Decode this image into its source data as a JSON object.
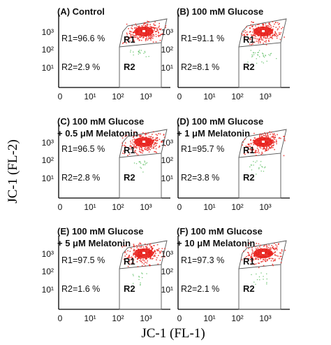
{
  "figure": {
    "y_axis_label": "JC-1 (FL-2)",
    "x_axis_label": "JC-1 (FL-1)"
  },
  "colors": {
    "r1_population": "#e8201c",
    "r2_population": "#3cb043",
    "gate_line": "#555555",
    "axis": "#000000"
  },
  "chart_data": [
    {
      "type": "scatter",
      "title_lines": [
        "(A) Control"
      ],
      "x_scale": "log",
      "y_scale": "log",
      "x_ticks": [
        "0",
        "10¹",
        "10²",
        "10³"
      ],
      "y_ticks": [
        "10¹",
        "10²",
        "10³"
      ],
      "gates": [
        {
          "name": "R1",
          "stat": "R1=96.6 %",
          "percent": 96.6
        },
        {
          "name": "R2",
          "stat": "R2=2.9 %",
          "percent": 2.9
        }
      ]
    },
    {
      "type": "scatter",
      "title_lines": [
        "(B) 100 mM Glucose"
      ],
      "x_scale": "log",
      "y_scale": "log",
      "x_ticks": [
        "0",
        "10¹",
        "10²",
        "10³"
      ],
      "y_ticks": [
        "10¹",
        "10²",
        "10³"
      ],
      "gates": [
        {
          "name": "R1",
          "stat": "R1=91.1 %",
          "percent": 91.1
        },
        {
          "name": "R2",
          "stat": "R2=8.1 %",
          "percent": 8.1
        }
      ]
    },
    {
      "type": "scatter",
      "title_lines": [
        "(C) 100 mM Glucose",
        "+ 0.5 μM Melatonin"
      ],
      "x_scale": "log",
      "y_scale": "log",
      "x_ticks": [
        "0",
        "10¹",
        "10²",
        "10³"
      ],
      "y_ticks": [
        "10¹",
        "10²",
        "10³"
      ],
      "gates": [
        {
          "name": "R1",
          "stat": "R1=96.5 %",
          "percent": 96.5
        },
        {
          "name": "R2",
          "stat": "R2=2.8 %",
          "percent": 2.8
        }
      ]
    },
    {
      "type": "scatter",
      "title_lines": [
        "(D) 100 mM Glucose",
        "+ 1 μM Melatonin"
      ],
      "x_scale": "log",
      "y_scale": "log",
      "x_ticks": [
        "0",
        "10¹",
        "10²",
        "10³"
      ],
      "y_ticks": [
        "10¹",
        "10²",
        "10³"
      ],
      "gates": [
        {
          "name": "R1",
          "stat": "R1=95.7 %",
          "percent": 95.7
        },
        {
          "name": "R2",
          "stat": "R2=3.8 %",
          "percent": 3.8
        }
      ]
    },
    {
      "type": "scatter",
      "title_lines": [
        "(E) 100 mM Glucose",
        "+ 5 μM Melatonin"
      ],
      "x_scale": "log",
      "y_scale": "log",
      "x_ticks": [
        "0",
        "10¹",
        "10²",
        "10³"
      ],
      "y_ticks": [
        "10¹",
        "10²",
        "10³"
      ],
      "gates": [
        {
          "name": "R1",
          "stat": "R1=97.5 %",
          "percent": 97.5
        },
        {
          "name": "R2",
          "stat": "R2=1.6 %",
          "percent": 1.6
        }
      ]
    },
    {
      "type": "scatter",
      "title_lines": [
        "(F) 100 mM Glucose",
        "+ 10 μM Melatonin"
      ],
      "x_scale": "log",
      "y_scale": "log",
      "x_ticks": [
        "0",
        "10¹",
        "10²",
        "10³"
      ],
      "y_ticks": [
        "10¹",
        "10²",
        "10³"
      ],
      "gates": [
        {
          "name": "R1",
          "stat": "R1=97.3 %",
          "percent": 97.3
        },
        {
          "name": "R2",
          "stat": "R2=2.1 %",
          "percent": 2.1
        }
      ]
    }
  ]
}
